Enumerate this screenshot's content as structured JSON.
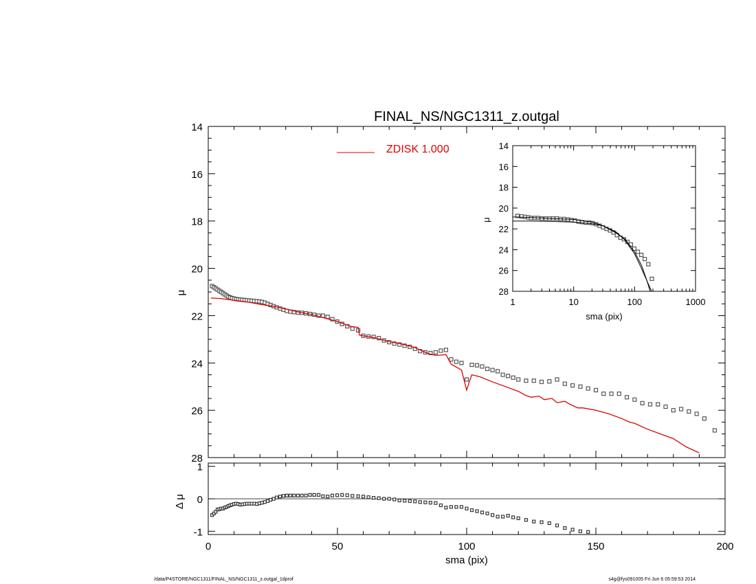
{
  "footer": {
    "left": "/data/P4STORE/NGC1311/FINAL_NS/NGC1311_z.outgal_1dprof",
    "right": "s4g@fys091005  Fri Jun  6 05:59:53 2014"
  },
  "chart_data": [
    {
      "id": "main",
      "type": "scatter",
      "title": "FINAL_NS/NGC1311_z.outgal",
      "xlabel": "",
      "ylabel": "μ",
      "xlim": [
        0,
        200
      ],
      "ylim": [
        28,
        14
      ],
      "y_inverted": true,
      "yticks": [
        14,
        16,
        18,
        20,
        22,
        24,
        26,
        28
      ],
      "grid": false,
      "legend": {
        "placement": "top-center",
        "entries": [
          {
            "label": "ZDISK  1.000",
            "color": "#dd0000"
          }
        ]
      },
      "series": [
        {
          "kind": "points",
          "marker": "square",
          "x": [
            1.5,
            2.2,
            2.9,
            3.6,
            4.3,
            5.0,
            5.7,
            6.4,
            7.1,
            7.8,
            8.5,
            9.2,
            10.0,
            10.8,
            11.6,
            12.4,
            13.2,
            14.1,
            15.0,
            15.9,
            16.8,
            17.8,
            18.8,
            19.8,
            20.8,
            21.9,
            23.0,
            24.1,
            25.3,
            26.5,
            27.8,
            29.1,
            30.4,
            31.8,
            33.2,
            34.7,
            36.2,
            37.8,
            39.4,
            41.0,
            42.7,
            44.4,
            46.2,
            48.0,
            49.9,
            51.8,
            53.8,
            55.8,
            58.0,
            60.0,
            62.0,
            64.0,
            66.0,
            68.0,
            70.0,
            72.0,
            74.0,
            76.0,
            78.0,
            80.0,
            82.0,
            84.0,
            86.0,
            88.0,
            90.0,
            92.0,
            94.0,
            96.0,
            98.0,
            100.0,
            102.0,
            104.0,
            106.0,
            108.0,
            110.0,
            112.0,
            114.0,
            116.0,
            118.0,
            120.0,
            123.0,
            126.0,
            129.0,
            132.0,
            135.0,
            138.0,
            141.0,
            144.0,
            147.0,
            150.0,
            153.0,
            156.0,
            159.0,
            162.0,
            165.0,
            168.0,
            171.0,
            174.0,
            177.0,
            180.0,
            183.0,
            186.0,
            189.0,
            192.0,
            196.0
          ],
          "y": [
            20.75,
            20.8,
            20.85,
            20.9,
            20.95,
            21.0,
            21.05,
            21.1,
            21.15,
            21.2,
            21.23,
            21.26,
            21.28,
            21.3,
            21.31,
            21.32,
            21.33,
            21.34,
            21.35,
            21.36,
            21.37,
            21.38,
            21.39,
            21.4,
            21.42,
            21.45,
            21.5,
            21.55,
            21.6,
            21.65,
            21.7,
            21.75,
            21.8,
            21.83,
            21.85,
            21.87,
            21.88,
            21.9,
            21.93,
            21.96,
            22.0,
            22.0,
            22.05,
            22.15,
            22.25,
            22.35,
            22.45,
            22.55,
            22.62,
            22.85,
            22.88,
            22.9,
            22.95,
            23.05,
            23.12,
            23.18,
            23.22,
            23.27,
            23.32,
            23.4,
            23.5,
            23.55,
            23.58,
            23.55,
            23.48,
            23.45,
            23.85,
            23.95,
            24.0,
            24.7,
            24.08,
            24.1,
            24.15,
            24.25,
            24.3,
            24.35,
            24.5,
            24.55,
            24.62,
            24.7,
            24.75,
            24.75,
            24.8,
            24.78,
            24.7,
            24.88,
            24.95,
            25.0,
            25.08,
            25.15,
            25.3,
            25.3,
            25.3,
            25.45,
            25.55,
            25.7,
            25.75,
            25.75,
            25.85,
            26.0,
            25.95,
            26.05,
            26.15,
            26.35,
            26.85
          ]
        },
        {
          "kind": "line",
          "name": "ZDISK  1.000",
          "color": "#dd0000",
          "x": [
            1.0,
            5.0,
            10.0,
            15.0,
            20.0,
            25.0,
            30.0,
            35.0,
            40.0,
            45.0,
            50.0,
            55.0,
            58.0,
            58.5,
            60.0,
            65.0,
            70.0,
            75.0,
            80.0,
            85.0,
            88.0,
            92.0,
            94.0,
            98.0,
            100.0,
            101.0,
            102.0,
            105.0,
            110.0,
            115.0,
            120.0,
            123.0,
            125.0,
            128.0,
            130.0,
            133.0,
            135.0,
            138.0,
            140.0,
            143.0,
            145.0,
            150.0,
            155.0,
            160.0,
            163.0,
            165.0,
            170.0,
            175.0,
            180.0,
            185.0,
            190.0
          ],
          "y": [
            21.25,
            21.28,
            21.35,
            21.42,
            21.52,
            21.6,
            21.72,
            21.85,
            21.95,
            22.1,
            22.25,
            22.45,
            22.5,
            22.82,
            22.85,
            22.95,
            23.1,
            23.2,
            23.35,
            23.6,
            23.68,
            23.65,
            24.05,
            24.3,
            25.15,
            24.8,
            24.5,
            24.58,
            24.8,
            25.0,
            25.2,
            25.38,
            25.45,
            25.4,
            25.55,
            25.5,
            25.68,
            25.62,
            25.75,
            25.9,
            25.9,
            26.0,
            26.15,
            26.35,
            26.5,
            26.55,
            26.8,
            27.0,
            27.2,
            27.55,
            27.8
          ]
        }
      ]
    },
    {
      "id": "residual",
      "type": "scatter",
      "xlabel": "sma (pix)",
      "ylabel": "Δ μ",
      "xlim": [
        0,
        200
      ],
      "ylim": [
        -1.1,
        1.1
      ],
      "xticks": [
        0,
        50,
        100,
        150,
        200
      ],
      "yticks": [
        -1,
        0,
        1
      ],
      "reference_line": 0,
      "series": [
        {
          "kind": "points",
          "marker": "square",
          "x": [
            1.5,
            2.2,
            2.9,
            3.6,
            4.3,
            5.0,
            5.7,
            6.4,
            7.1,
            7.8,
            8.5,
            9.2,
            10.0,
            10.8,
            11.6,
            12.4,
            13.2,
            14.1,
            15.0,
            15.9,
            16.8,
            17.8,
            18.8,
            19.8,
            20.8,
            21.9,
            23.0,
            24.1,
            25.3,
            26.5,
            27.8,
            29.1,
            30.4,
            31.8,
            33.2,
            34.7,
            36.2,
            37.8,
            39.4,
            41.0,
            42.7,
            44.4,
            46.2,
            48.0,
            49.9,
            51.8,
            53.8,
            55.8,
            58.0,
            60.0,
            62.0,
            64.0,
            66.0,
            68.0,
            70.0,
            72.0,
            74.0,
            76.0,
            78.0,
            80.0,
            82.0,
            84.0,
            86.0,
            88.0,
            90.0,
            92.0,
            94.0,
            96.0,
            98.0,
            100.0,
            102.0,
            104.0,
            106.0,
            108.0,
            110.0,
            112.0,
            114.0,
            116.0,
            118.0,
            120.0,
            123.0,
            126.0,
            129.0,
            132.0,
            135.0,
            138.0,
            141.0,
            144.0,
            147.0
          ],
          "y": [
            -0.5,
            -0.45,
            -0.4,
            -0.33,
            -0.32,
            -0.3,
            -0.3,
            -0.27,
            -0.25,
            -0.22,
            -0.2,
            -0.18,
            -0.16,
            -0.15,
            -0.16,
            -0.18,
            -0.17,
            -0.16,
            -0.15,
            -0.15,
            -0.15,
            -0.15,
            -0.16,
            -0.14,
            -0.12,
            -0.1,
            -0.07,
            -0.03,
            0.0,
            0.04,
            0.07,
            0.09,
            0.1,
            0.1,
            0.1,
            0.1,
            0.1,
            0.1,
            0.12,
            0.12,
            0.12,
            0.08,
            0.07,
            0.1,
            0.11,
            0.12,
            0.11,
            0.09,
            0.08,
            0.07,
            0.05,
            0.03,
            0.02,
            0.0,
            0.0,
            -0.02,
            -0.05,
            -0.06,
            -0.07,
            -0.08,
            -0.1,
            -0.11,
            -0.12,
            -0.13,
            -0.2,
            -0.27,
            -0.25,
            -0.25,
            -0.25,
            -0.3,
            -0.35,
            -0.38,
            -0.42,
            -0.45,
            -0.5,
            -0.55,
            -0.55,
            -0.52,
            -0.57,
            -0.6,
            -0.65,
            -0.7,
            -0.72,
            -0.75,
            -0.82,
            -0.9,
            -0.95,
            -1.0,
            -1.02
          ]
        }
      ]
    },
    {
      "id": "inset",
      "type": "scatter",
      "xlabel": "sma (pix)",
      "ylabel": "μ",
      "xscale": "log",
      "xlim": [
        1,
        1000
      ],
      "ylim": [
        28,
        14
      ],
      "y_inverted": true,
      "xticks": [
        1,
        10,
        100,
        1000
      ],
      "yticks": [
        14,
        16,
        18,
        20,
        22,
        24,
        26,
        28
      ],
      "series": [
        {
          "kind": "points",
          "marker": "square",
          "x": [
            1.2,
            1.4,
            1.6,
            1.8,
            2.0,
            2.3,
            2.6,
            3.0,
            3.5,
            4.0,
            4.6,
            5.3,
            6.1,
            7.0,
            8.0,
            9.2,
            10.5,
            12.0,
            13.8,
            15.8,
            18.0,
            20.5,
            23.4,
            26.7,
            30.4,
            34.7,
            39.6,
            45.1,
            51.4,
            58.6,
            66.8,
            76.2,
            86.9,
            99.0,
            113.0,
            129.0,
            147.0,
            168.0,
            192.0
          ],
          "y": [
            20.75,
            20.8,
            20.85,
            20.9,
            20.95,
            20.95,
            20.95,
            21.0,
            21.0,
            21.0,
            21.0,
            21.0,
            21.05,
            21.05,
            21.1,
            21.15,
            21.2,
            21.3,
            21.35,
            21.4,
            21.4,
            21.45,
            21.55,
            21.7,
            21.85,
            22.0,
            22.15,
            22.35,
            22.6,
            22.85,
            23.0,
            23.25,
            23.5,
            23.9,
            24.2,
            24.5,
            24.9,
            25.4,
            26.8
          ]
        },
        {
          "kind": "line",
          "name": "",
          "color": "#000000",
          "x": [
            1.0,
            2.0,
            5.0,
            10.0,
            20.0,
            30.0,
            50.0,
            70.0,
            100.0,
            130.0,
            160.0,
            190.0
          ],
          "y": [
            21.25,
            21.25,
            21.3,
            21.35,
            21.5,
            21.7,
            22.3,
            23.1,
            24.4,
            25.8,
            27.0,
            28.0
          ]
        },
        {
          "kind": "line",
          "name": "",
          "color": "#000000",
          "x": [
            1.0,
            3.0,
            10.0,
            20.0,
            30.0,
            50.0,
            70.0,
            100.0,
            130.0,
            160.0,
            180.0
          ],
          "y": [
            20.85,
            20.95,
            21.1,
            21.35,
            21.7,
            22.4,
            23.0,
            24.2,
            25.5,
            27.0,
            28.0
          ]
        }
      ]
    }
  ]
}
